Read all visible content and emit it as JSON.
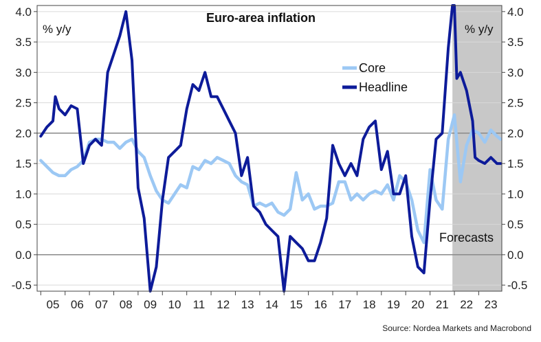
{
  "chart_data": {
    "type": "line",
    "title": "Euro-area inflation",
    "unit_left": "% y/y",
    "unit_right": "% y/y",
    "source": "Source: Nordea Markets and Macrobond",
    "forecast_label": "Forecasts",
    "forecast_start": 2021.92,
    "x_range": [
      2004.85,
      2023.95
    ],
    "ylim": [
      -0.6,
      4.1
    ],
    "yticks": [
      -0.5,
      0.0,
      0.5,
      1.0,
      1.5,
      2.0,
      2.5,
      3.0,
      3.5,
      4.0
    ],
    "ytick_labels": [
      "-0.5",
      "0.0",
      "0.5",
      "1.0",
      "1.5",
      "2.0",
      "2.5",
      "3.0",
      "3.5",
      "4.0"
    ],
    "xtick_labels": [
      "05",
      "06",
      "07",
      "08",
      "09",
      "10",
      "11",
      "12",
      "13",
      "14",
      "15",
      "16",
      "17",
      "18",
      "19",
      "20",
      "21",
      "22",
      "23"
    ],
    "reference_lines": [
      0.0,
      2.0
    ],
    "grid": true,
    "legend_position": "upper-right",
    "colors": {
      "core": "#9cc8f4",
      "headline": "#0d1b99",
      "forecast_shade": "#c8c8c8",
      "grid": "#d9d9d9",
      "refline": "#888888"
    },
    "series": [
      {
        "name": "Core",
        "color": "#9cc8f4",
        "points": [
          [
            2005.0,
            1.55
          ],
          [
            2005.25,
            1.45
          ],
          [
            2005.5,
            1.35
          ],
          [
            2005.75,
            1.3
          ],
          [
            2006.0,
            1.3
          ],
          [
            2006.25,
            1.4
          ],
          [
            2006.5,
            1.45
          ],
          [
            2006.75,
            1.55
          ],
          [
            2007.0,
            1.85
          ],
          [
            2007.25,
            1.9
          ],
          [
            2007.5,
            1.9
          ],
          [
            2007.75,
            1.85
          ],
          [
            2008.0,
            1.85
          ],
          [
            2008.25,
            1.75
          ],
          [
            2008.5,
            1.85
          ],
          [
            2008.75,
            1.9
          ],
          [
            2009.0,
            1.7
          ],
          [
            2009.25,
            1.6
          ],
          [
            2009.5,
            1.3
          ],
          [
            2009.75,
            1.05
          ],
          [
            2010.0,
            0.9
          ],
          [
            2010.25,
            0.85
          ],
          [
            2010.5,
            1.0
          ],
          [
            2010.75,
            1.15
          ],
          [
            2011.0,
            1.1
          ],
          [
            2011.25,
            1.45
          ],
          [
            2011.5,
            1.4
          ],
          [
            2011.75,
            1.55
          ],
          [
            2012.0,
            1.5
          ],
          [
            2012.25,
            1.6
          ],
          [
            2012.5,
            1.55
          ],
          [
            2012.75,
            1.5
          ],
          [
            2013.0,
            1.3
          ],
          [
            2013.25,
            1.2
          ],
          [
            2013.5,
            1.15
          ],
          [
            2013.75,
            0.8
          ],
          [
            2014.0,
            0.85
          ],
          [
            2014.25,
            0.8
          ],
          [
            2014.5,
            0.85
          ],
          [
            2014.75,
            0.7
          ],
          [
            2015.0,
            0.65
          ],
          [
            2015.25,
            0.75
          ],
          [
            2015.5,
            1.35
          ],
          [
            2015.75,
            0.9
          ],
          [
            2016.0,
            1.0
          ],
          [
            2016.25,
            0.75
          ],
          [
            2016.5,
            0.8
          ],
          [
            2016.75,
            0.8
          ],
          [
            2017.0,
            0.85
          ],
          [
            2017.25,
            1.2
          ],
          [
            2017.5,
            1.2
          ],
          [
            2017.75,
            0.9
          ],
          [
            2018.0,
            1.0
          ],
          [
            2018.25,
            0.9
          ],
          [
            2018.5,
            1.0
          ],
          [
            2018.75,
            1.05
          ],
          [
            2019.0,
            1.0
          ],
          [
            2019.25,
            1.15
          ],
          [
            2019.5,
            0.9
          ],
          [
            2019.75,
            1.3
          ],
          [
            2020.0,
            1.2
          ],
          [
            2020.25,
            0.9
          ],
          [
            2020.5,
            0.4
          ],
          [
            2020.75,
            0.2
          ],
          [
            2021.0,
            1.4
          ],
          [
            2021.25,
            0.9
          ],
          [
            2021.5,
            0.75
          ],
          [
            2021.75,
            1.9
          ],
          [
            2022.0,
            2.3
          ],
          [
            2022.25,
            1.2
          ],
          [
            2022.5,
            1.8
          ],
          [
            2022.75,
            2.05
          ],
          [
            2023.0,
            2.0
          ],
          [
            2023.25,
            1.85
          ],
          [
            2023.5,
            2.05
          ],
          [
            2023.75,
            1.95
          ],
          [
            2023.9,
            1.9
          ]
        ]
      },
      {
        "name": "Headline",
        "color": "#0d1b99",
        "points": [
          [
            2005.0,
            1.95
          ],
          [
            2005.25,
            2.1
          ],
          [
            2005.5,
            2.2
          ],
          [
            2005.6,
            2.6
          ],
          [
            2005.75,
            2.4
          ],
          [
            2006.0,
            2.3
          ],
          [
            2006.25,
            2.45
          ],
          [
            2006.5,
            2.4
          ],
          [
            2006.75,
            1.5
          ],
          [
            2007.0,
            1.8
          ],
          [
            2007.25,
            1.9
          ],
          [
            2007.5,
            1.8
          ],
          [
            2007.75,
            3.0
          ],
          [
            2008.0,
            3.3
          ],
          [
            2008.25,
            3.6
          ],
          [
            2008.5,
            4.0
          ],
          [
            2008.75,
            3.2
          ],
          [
            2009.0,
            1.1
          ],
          [
            2009.25,
            0.6
          ],
          [
            2009.5,
            -0.6
          ],
          [
            2009.75,
            -0.2
          ],
          [
            2010.0,
            0.9
          ],
          [
            2010.25,
            1.6
          ],
          [
            2010.5,
            1.7
          ],
          [
            2010.75,
            1.8
          ],
          [
            2011.0,
            2.4
          ],
          [
            2011.25,
            2.8
          ],
          [
            2011.5,
            2.7
          ],
          [
            2011.75,
            3.0
          ],
          [
            2012.0,
            2.6
          ],
          [
            2012.25,
            2.6
          ],
          [
            2012.5,
            2.4
          ],
          [
            2012.75,
            2.2
          ],
          [
            2013.0,
            2.0
          ],
          [
            2013.25,
            1.3
          ],
          [
            2013.5,
            1.6
          ],
          [
            2013.75,
            0.8
          ],
          [
            2014.0,
            0.7
          ],
          [
            2014.25,
            0.5
          ],
          [
            2014.5,
            0.4
          ],
          [
            2014.75,
            0.3
          ],
          [
            2015.0,
            -0.6
          ],
          [
            2015.25,
            0.3
          ],
          [
            2015.5,
            0.2
          ],
          [
            2015.75,
            0.1
          ],
          [
            2016.0,
            -0.1
          ],
          [
            2016.25,
            -0.1
          ],
          [
            2016.5,
            0.2
          ],
          [
            2016.75,
            0.6
          ],
          [
            2017.0,
            1.8
          ],
          [
            2017.25,
            1.5
          ],
          [
            2017.5,
            1.3
          ],
          [
            2017.75,
            1.5
          ],
          [
            2018.0,
            1.3
          ],
          [
            2018.25,
            1.9
          ],
          [
            2018.5,
            2.1
          ],
          [
            2018.75,
            2.2
          ],
          [
            2019.0,
            1.4
          ],
          [
            2019.25,
            1.7
          ],
          [
            2019.5,
            1.0
          ],
          [
            2019.75,
            1.0
          ],
          [
            2020.0,
            1.3
          ],
          [
            2020.25,
            0.3
          ],
          [
            2020.5,
            -0.2
          ],
          [
            2020.75,
            -0.3
          ],
          [
            2021.0,
            0.9
          ],
          [
            2021.25,
            1.9
          ],
          [
            2021.5,
            2.0
          ],
          [
            2021.75,
            3.4
          ],
          [
            2021.92,
            4.1
          ],
          [
            2022.0,
            4.1
          ],
          [
            2022.1,
            2.9
          ],
          [
            2022.25,
            3.0
          ],
          [
            2022.5,
            2.7
          ],
          [
            2022.75,
            2.2
          ],
          [
            2022.85,
            1.6
          ],
          [
            2023.0,
            1.55
          ],
          [
            2023.25,
            1.5
          ],
          [
            2023.5,
            1.6
          ],
          [
            2023.75,
            1.5
          ],
          [
            2023.9,
            1.5
          ]
        ]
      }
    ]
  }
}
